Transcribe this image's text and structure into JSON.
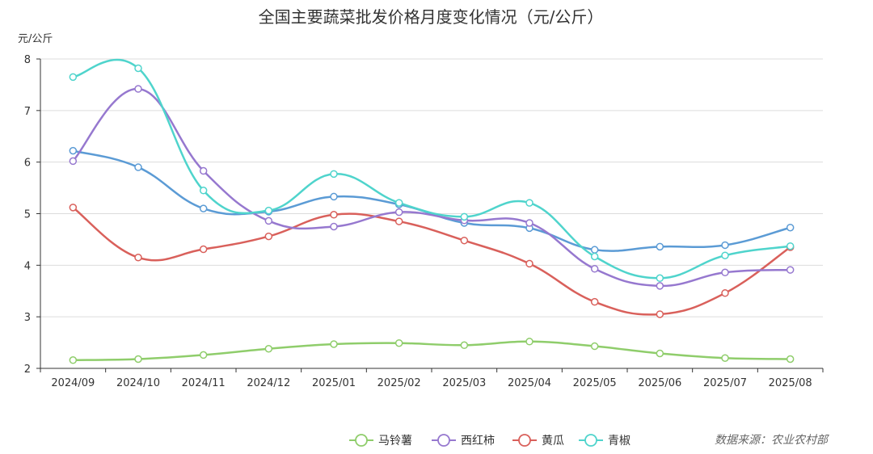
{
  "chart_data": {
    "type": "line",
    "title": "全国主要蔬菜批发价格月度变化情况（元/公斤）",
    "ylabel": "元/公斤",
    "xlabel": "",
    "ylim": [
      2,
      8
    ],
    "yticks": [
      "2",
      "3",
      "4",
      "5",
      "6",
      "7",
      "8"
    ],
    "categories": [
      "2024/09",
      "2024/10",
      "2024/11",
      "2024/12",
      "2025/01",
      "2025/02",
      "2025/03",
      "2025/04",
      "2025/05",
      "2025/06",
      "2025/07",
      "2025/08"
    ],
    "grid": true,
    "legend_position": "bottom",
    "source_note": "数据来源：农业农村部",
    "series": [
      {
        "name": "马铃薯",
        "color": "#8fcd6b",
        "values": [
          2.16,
          2.18,
          2.26,
          2.38,
          2.47,
          2.49,
          2.45,
          2.52,
          2.43,
          2.29,
          2.2,
          2.18
        ]
      },
      {
        "name": "西红柿",
        "color": "#9678cf",
        "values": [
          6.02,
          7.42,
          5.83,
          4.86,
          4.75,
          5.03,
          4.87,
          4.82,
          3.93,
          3.6,
          3.86,
          3.91
        ]
      },
      {
        "name": "黄瓜",
        "color": "#d9605b",
        "values": [
          5.12,
          4.15,
          4.31,
          4.56,
          4.98,
          4.85,
          4.48,
          4.03,
          3.29,
          3.05,
          3.46,
          4.35
        ]
      },
      {
        "name": "青椒",
        "color": "#4fd4cc",
        "values": [
          7.65,
          7.82,
          5.45,
          5.06,
          5.77,
          5.21,
          4.94,
          5.21,
          4.17,
          3.75,
          4.19,
          4.37
        ]
      },
      {
        "name": "",
        "color": "#5b9bd5",
        "values": [
          6.22,
          5.9,
          5.1,
          5.04,
          5.33,
          5.18,
          4.82,
          4.72,
          4.3,
          4.36,
          4.39,
          4.73
        ]
      }
    ]
  }
}
